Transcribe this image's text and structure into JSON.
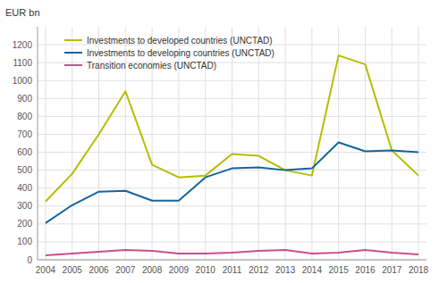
{
  "chart_data": {
    "type": "line",
    "y_label": "EUR bn",
    "x": [
      2004,
      2005,
      2006,
      2007,
      2008,
      2009,
      2010,
      2011,
      2012,
      2013,
      2014,
      2015,
      2016,
      2017,
      2018
    ],
    "xlim": [
      2003.7,
      2018.3
    ],
    "xticks": [
      2004,
      2005,
      2006,
      2007,
      2008,
      2009,
      2010,
      2011,
      2012,
      2013,
      2014,
      2015,
      2016,
      2017,
      2018
    ],
    "ylim": [
      0,
      1300
    ],
    "yticks": [
      0,
      100,
      200,
      300,
      400,
      500,
      600,
      700,
      800,
      900,
      1000,
      1100,
      1200
    ],
    "grid": true,
    "legend": "upper left",
    "series": [
      {
        "name": "Investments to developed countries (UNCTAD)",
        "color": "#b5bd00",
        "values": [
          325,
          480,
          700,
          940,
          530,
          460,
          470,
          590,
          580,
          500,
          470,
          1140,
          1090,
          610,
          470
        ]
      },
      {
        "name": "Investments to developing countries (UNCTAD)",
        "color": "#1464a0",
        "values": [
          205,
          305,
          380,
          385,
          330,
          330,
          460,
          510,
          515,
          500,
          510,
          655,
          605,
          610,
          600
        ]
      },
      {
        "name": "Transition economies (UNCTAD)",
        "color": "#c8508c",
        "values": [
          25,
          35,
          45,
          55,
          50,
          35,
          35,
          40,
          50,
          55,
          35,
          40,
          55,
          40,
          30
        ]
      }
    ]
  }
}
